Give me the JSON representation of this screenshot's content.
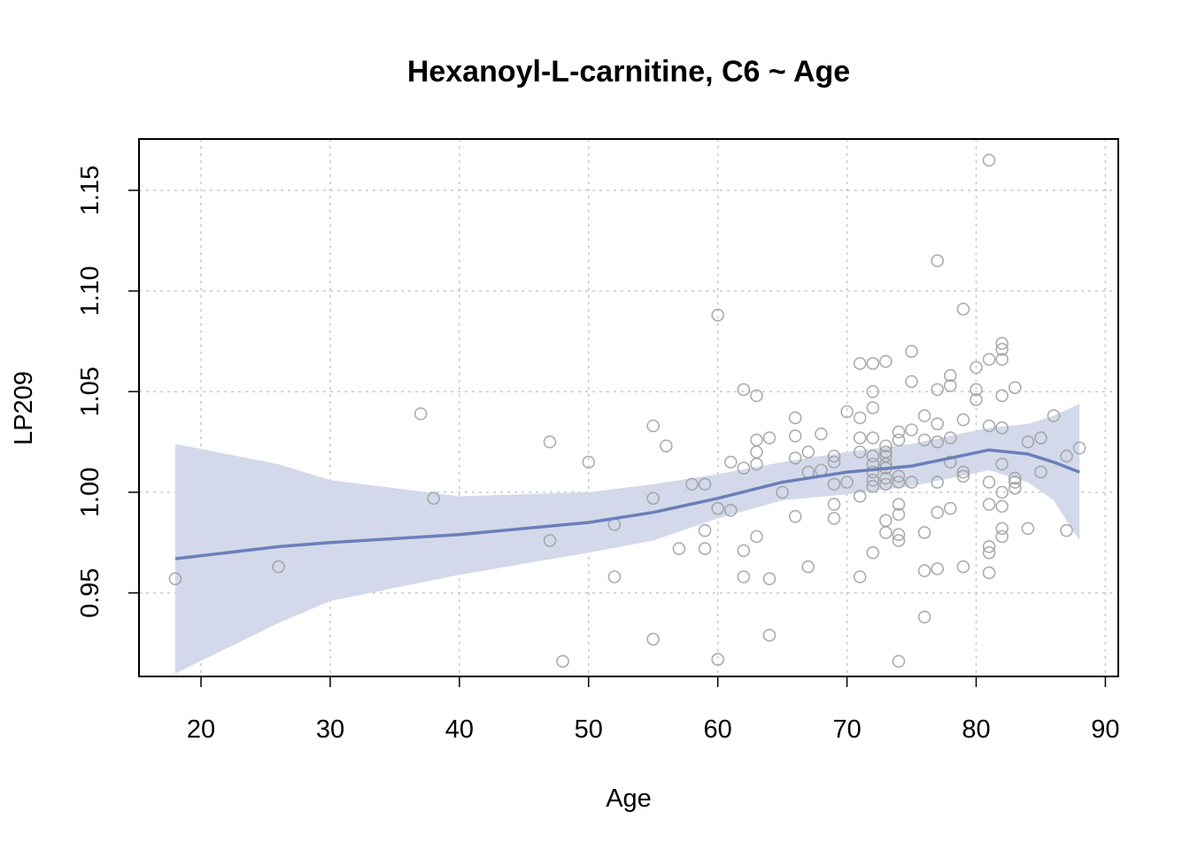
{
  "chart_data": {
    "type": "scatter",
    "title": "Hexanoyl-L-carnitine, C6 ~ Age",
    "xlabel": "Age",
    "ylabel": "LP209",
    "xlim": [
      15.2,
      91
    ],
    "ylim": [
      0.9085,
      1.1755
    ],
    "x_ticks": [
      20,
      30,
      40,
      50,
      60,
      70,
      80,
      90
    ],
    "x_tick_labels": [
      "20",
      "30",
      "40",
      "50",
      "60",
      "70",
      "80",
      "90"
    ],
    "y_ticks": [
      0.95,
      1.0,
      1.05,
      1.1,
      1.15
    ],
    "y_tick_labels": [
      "0.95",
      "1.00",
      "1.05",
      "1.10",
      "1.15"
    ],
    "grid": true,
    "colors": {
      "points": "#9e9e9e",
      "fit_line": "#6a7fba",
      "confidence_band": "#d3d9ea",
      "grid": "#c8c8c8"
    },
    "points": [
      [
        18,
        0.957
      ],
      [
        26,
        0.963
      ],
      [
        37,
        1.039
      ],
      [
        38,
        0.997
      ],
      [
        47,
        1.025
      ],
      [
        47,
        0.976
      ],
      [
        48,
        0.916
      ],
      [
        50,
        1.015
      ],
      [
        52,
        0.984
      ],
      [
        52,
        0.958
      ],
      [
        55,
        1.033
      ],
      [
        55,
        0.997
      ],
      [
        55,
        0.927
      ],
      [
        56,
        1.023
      ],
      [
        57,
        0.972
      ],
      [
        58,
        1.004
      ],
      [
        59,
        1.004
      ],
      [
        59,
        0.981
      ],
      [
        59,
        0.972
      ],
      [
        60,
        1.088
      ],
      [
        60,
        0.992
      ],
      [
        60,
        0.917
      ],
      [
        61,
        1.015
      ],
      [
        61,
        0.991
      ],
      [
        62,
        1.051
      ],
      [
        62,
        1.012
      ],
      [
        62,
        0.971
      ],
      [
        62,
        0.958
      ],
      [
        63,
        1.048
      ],
      [
        63,
        1.026
      ],
      [
        63,
        1.02
      ],
      [
        63,
        1.014
      ],
      [
        63,
        0.978
      ],
      [
        64,
        1.027
      ],
      [
        64,
        0.957
      ],
      [
        64,
        0.929
      ],
      [
        65,
        1.0
      ],
      [
        66,
        1.037
      ],
      [
        66,
        1.028
      ],
      [
        66,
        1.017
      ],
      [
        66,
        0.988
      ],
      [
        67,
        1.02
      ],
      [
        67,
        1.01
      ],
      [
        67,
        0.963
      ],
      [
        68,
        1.029
      ],
      [
        68,
        1.011
      ],
      [
        69,
        1.018
      ],
      [
        69,
        1.015
      ],
      [
        69,
        1.004
      ],
      [
        69,
        0.994
      ],
      [
        69,
        0.987
      ],
      [
        70,
        1.04
      ],
      [
        70,
        1.005
      ],
      [
        71,
        1.064
      ],
      [
        71,
        1.037
      ],
      [
        71,
        1.027
      ],
      [
        71,
        1.02
      ],
      [
        71,
        0.998
      ],
      [
        71,
        0.958
      ],
      [
        72,
        1.064
      ],
      [
        72,
        1.05
      ],
      [
        72,
        1.042
      ],
      [
        72,
        1.027
      ],
      [
        72,
        1.018
      ],
      [
        72,
        1.014
      ],
      [
        72,
        1.01
      ],
      [
        72,
        1.006
      ],
      [
        72,
        1.003
      ],
      [
        72,
        0.97
      ],
      [
        73,
        1.065
      ],
      [
        73,
        1.023
      ],
      [
        73,
        1.02
      ],
      [
        73,
        1.018
      ],
      [
        73,
        1.014
      ],
      [
        73,
        1.012
      ],
      [
        73,
        1.007
      ],
      [
        73,
        1.004
      ],
      [
        73,
        0.986
      ],
      [
        73,
        0.98
      ],
      [
        74,
        1.03
      ],
      [
        74,
        1.026
      ],
      [
        74,
        1.008
      ],
      [
        74,
        1.005
      ],
      [
        74,
        0.994
      ],
      [
        74,
        0.989
      ],
      [
        74,
        0.979
      ],
      [
        74,
        0.976
      ],
      [
        74,
        0.916
      ],
      [
        75,
        1.07
      ],
      [
        75,
        1.055
      ],
      [
        75,
        1.031
      ],
      [
        75,
        1.005
      ],
      [
        76,
        1.038
      ],
      [
        76,
        1.026
      ],
      [
        76,
        0.98
      ],
      [
        76,
        0.961
      ],
      [
        76,
        0.938
      ],
      [
        77,
        1.115
      ],
      [
        77,
        1.051
      ],
      [
        77,
        1.034
      ],
      [
        77,
        1.025
      ],
      [
        77,
        1.005
      ],
      [
        77,
        0.99
      ],
      [
        77,
        0.962
      ],
      [
        78,
        1.058
      ],
      [
        78,
        1.053
      ],
      [
        78,
        1.027
      ],
      [
        78,
        1.015
      ],
      [
        78,
        0.992
      ],
      [
        79,
        1.091
      ],
      [
        79,
        1.036
      ],
      [
        79,
        1.01
      ],
      [
        79,
        1.008
      ],
      [
        79,
        0.963
      ],
      [
        80,
        1.062
      ],
      [
        80,
        1.051
      ],
      [
        80,
        1.046
      ],
      [
        81,
        1.165
      ],
      [
        81,
        1.066
      ],
      [
        81,
        1.033
      ],
      [
        81,
        1.005
      ],
      [
        81,
        0.994
      ],
      [
        81,
        0.973
      ],
      [
        81,
        0.97
      ],
      [
        81,
        0.96
      ],
      [
        82,
        1.074
      ],
      [
        82,
        1.071
      ],
      [
        82,
        1.066
      ],
      [
        82,
        1.048
      ],
      [
        82,
        1.032
      ],
      [
        82,
        1.014
      ],
      [
        82,
        1.0
      ],
      [
        82,
        0.993
      ],
      [
        82,
        0.982
      ],
      [
        82,
        0.978
      ],
      [
        83,
        1.052
      ],
      [
        83,
        1.007
      ],
      [
        83,
        1.005
      ],
      [
        83,
        1.002
      ],
      [
        84,
        1.025
      ],
      [
        84,
        0.982
      ],
      [
        85,
        1.027
      ],
      [
        85,
        1.01
      ],
      [
        86,
        1.038
      ],
      [
        87,
        1.018
      ],
      [
        87,
        0.981
      ],
      [
        88,
        1.022
      ]
    ],
    "fit": {
      "x": [
        18,
        26,
        30,
        40,
        50,
        55,
        60,
        65,
        70,
        75,
        78,
        81,
        84,
        86,
        88
      ],
      "y": [
        0.967,
        0.973,
        0.975,
        0.979,
        0.985,
        0.99,
        0.997,
        1.005,
        1.01,
        1.013,
        1.017,
        1.021,
        1.019,
        1.015,
        1.01
      ],
      "lower": [
        0.91,
        0.935,
        0.946,
        0.959,
        0.97,
        0.976,
        0.987,
        0.996,
        0.999,
        1.003,
        1.007,
        1.011,
        1.005,
        0.996,
        0.976
      ],
      "upper": [
        1.024,
        1.014,
        1.006,
        0.998,
        1.0,
        1.004,
        1.009,
        1.015,
        1.02,
        1.024,
        1.028,
        1.032,
        1.034,
        1.038,
        1.044
      ]
    }
  }
}
